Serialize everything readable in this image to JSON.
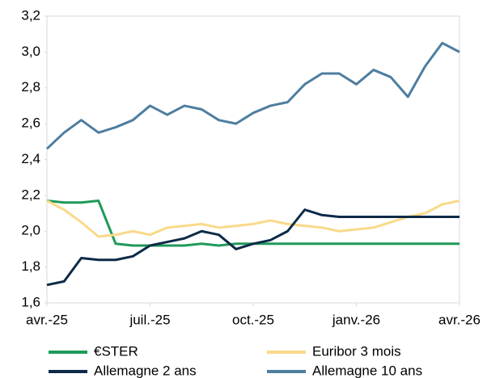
{
  "chart_data": {
    "type": "line",
    "x": [
      0,
      0.5,
      1,
      1.5,
      2,
      2.5,
      3,
      3.5,
      4,
      4.5,
      5,
      5.5,
      6,
      6.5,
      7,
      7.5,
      8,
      8.5,
      9,
      9.5,
      10,
      10.5,
      11,
      11.5,
      12
    ],
    "xlim": [
      0,
      12
    ],
    "xticks": [
      {
        "value": 0,
        "label": "avr.-25"
      },
      {
        "value": 3,
        "label": "juil.-25"
      },
      {
        "value": 6,
        "label": "oct.-25"
      },
      {
        "value": 9,
        "label": "janv.-26"
      },
      {
        "value": 12,
        "label": "avr.-26"
      }
    ],
    "ylim": [
      1.6,
      3.2
    ],
    "yticks": [
      {
        "value": 1.6,
        "label": "1,6"
      },
      {
        "value": 1.8,
        "label": "1,8"
      },
      {
        "value": 2.0,
        "label": "2,0"
      },
      {
        "value": 2.2,
        "label": "2,2"
      },
      {
        "value": 2.4,
        "label": "2,4"
      },
      {
        "value": 2.6,
        "label": "2,6"
      },
      {
        "value": 2.8,
        "label": "2,8"
      },
      {
        "value": 3.0,
        "label": "3,0"
      },
      {
        "value": 3.2,
        "label": "3,2"
      }
    ],
    "grid": false,
    "legend": "bottom",
    "series": [
      {
        "name": "€STER",
        "color": "#1f9a5a",
        "values": [
          2.17,
          2.16,
          2.16,
          2.17,
          1.93,
          1.92,
          1.92,
          1.92,
          1.92,
          1.93,
          1.92,
          1.93,
          1.93,
          1.93,
          1.93,
          1.93,
          1.93,
          1.93,
          1.93,
          1.93,
          1.93,
          1.93,
          1.93,
          1.93,
          1.93
        ]
      },
      {
        "name": "Euribor 3 mois",
        "color": "#f9d98a",
        "values": [
          2.17,
          2.12,
          2.05,
          1.97,
          1.98,
          2.0,
          1.98,
          2.02,
          2.03,
          2.04,
          2.02,
          2.03,
          2.04,
          2.06,
          2.04,
          2.03,
          2.02,
          2.0,
          2.01,
          2.02,
          2.05,
          2.08,
          2.1,
          2.15,
          2.17
        ]
      },
      {
        "name": "Allemagne 2 ans",
        "color": "#0d2a47",
        "values": [
          1.7,
          1.72,
          1.85,
          1.84,
          1.84,
          1.86,
          1.92,
          1.94,
          1.96,
          2.0,
          1.98,
          1.9,
          1.93,
          1.95,
          2.0,
          2.12,
          2.09,
          2.08,
          2.08,
          2.08,
          2.08,
          2.08,
          2.08,
          2.08,
          2.08
        ]
      },
      {
        "name": "Allemagne 10 ans",
        "color": "#4e7ea0",
        "values": [
          2.46,
          2.55,
          2.62,
          2.55,
          2.58,
          2.62,
          2.7,
          2.65,
          2.7,
          2.68,
          2.62,
          2.6,
          2.66,
          2.7,
          2.72,
          2.82,
          2.88,
          2.88,
          2.82,
          2.9,
          2.86,
          2.75,
          2.92,
          3.05,
          3.0
        ]
      }
    ]
  }
}
